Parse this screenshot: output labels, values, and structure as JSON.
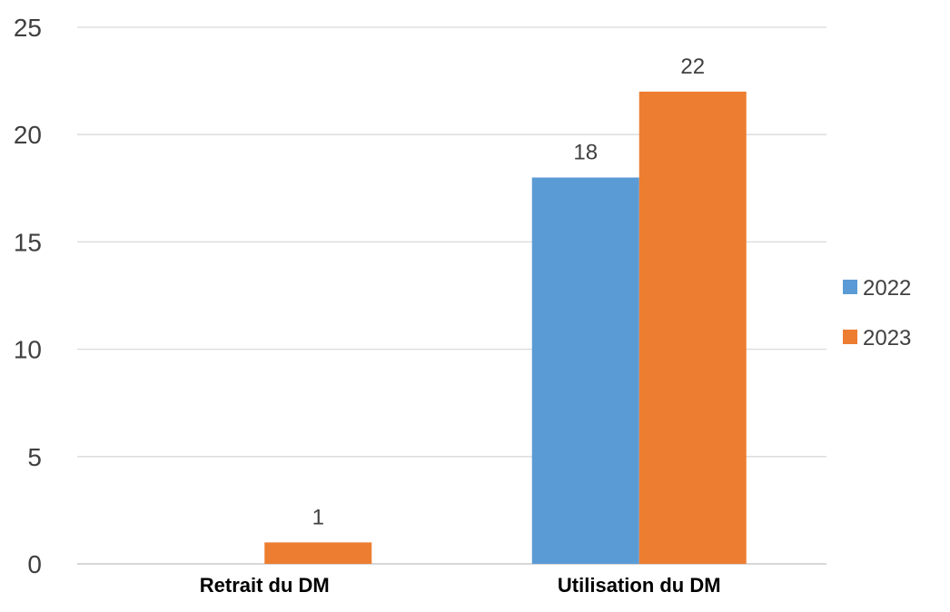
{
  "chart_data": {
    "type": "bar",
    "categories": [
      "Retrait du DM",
      "Utilisation du DM"
    ],
    "series": [
      {
        "name": "2022",
        "values": [
          0,
          18
        ],
        "color": "#5b9bd5"
      },
      {
        "name": "2023",
        "values": [
          1,
          22
        ],
        "color": "#ed7d31"
      }
    ],
    "data_labels": [
      [
        null,
        "18"
      ],
      [
        "1",
        "22"
      ]
    ],
    "yticks": [
      "0",
      "5",
      "10",
      "15",
      "20",
      "25"
    ],
    "ylim": [
      0,
      25
    ],
    "grid": true,
    "legend_position": "right",
    "title": "",
    "xlabel": "",
    "ylabel": ""
  }
}
